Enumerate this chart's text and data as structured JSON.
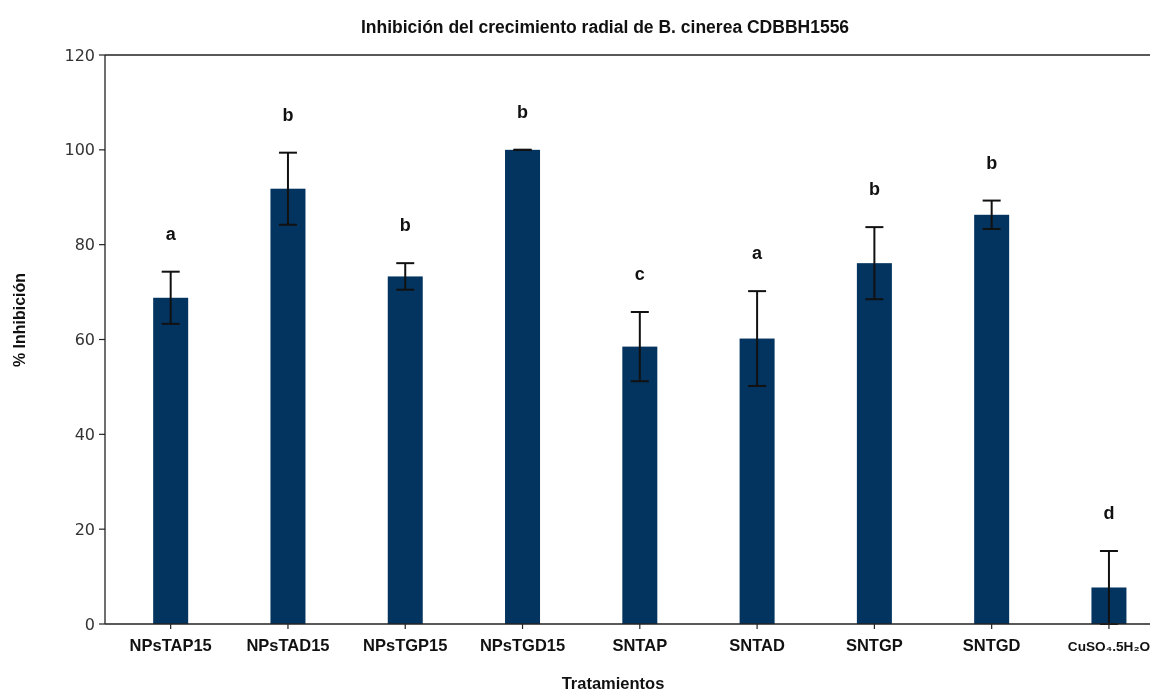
{
  "chart_data": {
    "type": "bar",
    "title": "Inhibición del crecimiento radial de B. cinerea CDBBH1556",
    "xlabel": "Tratamientos",
    "ylabel": "% Inhibición",
    "categories": [
      "NPsTAP15",
      "NPsTAD15",
      "NPsTGP15",
      "NPsTGD15",
      "SNTAP",
      "SNTAD",
      "SNTGP",
      "SNTGD",
      "CuSO₄.5H₂O"
    ],
    "values": [
      68.8,
      91.8,
      73.3,
      100,
      58.5,
      60.2,
      76.1,
      86.3,
      7.7
    ],
    "errors": [
      5.5,
      7.6,
      2.8,
      0,
      7.3,
      10,
      7.6,
      3,
      7.7
    ],
    "color": "#03335f",
    "ylim": [
      0,
      120
    ],
    "yticks": [
      0,
      20,
      40,
      60,
      80,
      100,
      120
    ],
    "annotations": [
      "a",
      "b",
      "b",
      "b",
      "c",
      "a",
      "b",
      "b",
      "d"
    ]
  }
}
